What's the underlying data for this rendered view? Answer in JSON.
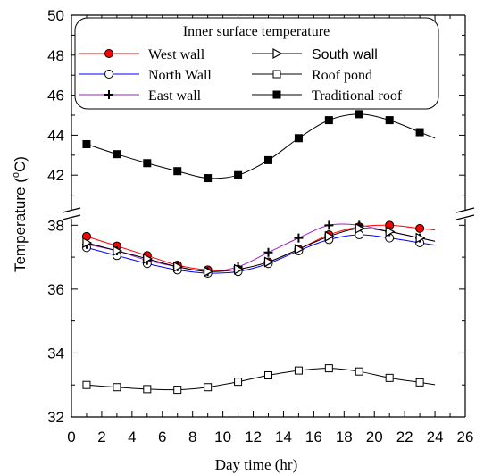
{
  "chart_data": {
    "type": "line",
    "legend_title": "Inner surface temperature",
    "xlabel": "Day time (hr)",
    "ylabel": "Temperature (",
    "ylabel_sup": "o",
    "ylabel_unit": "C)",
    "xlim": [
      0,
      26
    ],
    "xticks": [
      "0",
      "2",
      "4",
      "6",
      "8",
      "10",
      "12",
      "14",
      "16",
      "18",
      "20",
      "22",
      "24",
      "26"
    ],
    "ylim_upper": [
      40,
      50
    ],
    "ylim_lower": [
      32,
      38.4
    ],
    "yticks_upper": [
      "42",
      "44",
      "46",
      "48",
      "50"
    ],
    "yticks_lower": [
      "32",
      "34",
      "36",
      "38"
    ],
    "y_break": true,
    "grid": false,
    "legend_position": "top-left",
    "x": [
      1,
      3,
      5,
      7,
      9,
      11,
      13,
      15,
      17,
      19,
      21,
      23
    ],
    "series": [
      {
        "name": "West wall",
        "color": "#ff0000",
        "marker": "circle-filled-red",
        "values": [
          37.65,
          37.35,
          37.05,
          36.75,
          36.6,
          36.62,
          36.85,
          37.25,
          37.7,
          37.95,
          38.0,
          37.9
        ]
      },
      {
        "name": "North Wall",
        "color": "#0000ff",
        "marker": "circle-open",
        "values": [
          37.3,
          37.05,
          36.8,
          36.6,
          36.5,
          36.55,
          36.8,
          37.2,
          37.55,
          37.7,
          37.6,
          37.45
        ]
      },
      {
        "name": "East wall",
        "color": "#a020c0",
        "marker": "plus",
        "values": [
          37.4,
          37.2,
          36.9,
          36.7,
          36.55,
          36.7,
          37.15,
          37.6,
          38.0,
          38.0,
          37.8,
          37.6
        ]
      },
      {
        "name": "South wall",
        "color": "#000000",
        "marker": "triangle-right",
        "values": [
          37.45,
          37.2,
          36.95,
          36.7,
          36.55,
          36.62,
          36.85,
          37.25,
          37.65,
          37.9,
          37.8,
          37.6
        ]
      },
      {
        "name": "Roof pond",
        "color": "#000000",
        "marker": "square-open",
        "values": [
          33.0,
          32.93,
          32.87,
          32.85,
          32.93,
          33.1,
          33.3,
          33.45,
          33.52,
          33.42,
          33.22,
          33.08
        ]
      },
      {
        "name": "Traditional roof",
        "color": "#000000",
        "marker": "square-filled",
        "values": [
          43.55,
          43.05,
          42.6,
          42.2,
          41.85,
          42.0,
          42.75,
          43.85,
          44.75,
          45.05,
          44.75,
          44.15
        ]
      }
    ]
  }
}
